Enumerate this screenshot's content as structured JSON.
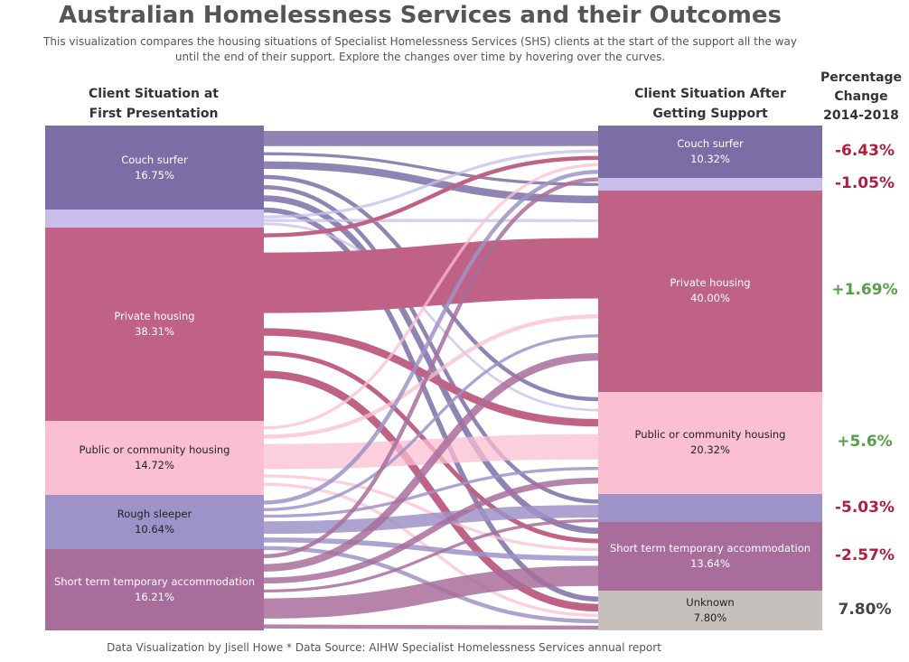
{
  "title": "Australian Homelessness Services and their Outcomes",
  "subtitle": "This visualization compares the housing situations of Specialist Homelessness Services (SHS) clients at the start of the support all the way until the end of their support. Explore the changes over time by hovering over the curves.",
  "left_header": [
    "Client Situation at",
    "First Presentation"
  ],
  "right_header": [
    "Client Situation After",
    "Getting Support"
  ],
  "change_header": [
    "Percentage",
    "Change",
    "2014-2018"
  ],
  "footer": "Data Visualization by Jisell Howe  * Data Source: AIHW Specialist Homelessness Services annual report",
  "colors": {
    "couch": "#7B6EA6",
    "other": "#C7BFEA",
    "private": "#C06285",
    "public": "#FBBFD2",
    "rough": "#9D93C8",
    "short": "#A96D9B",
    "unknown": "#C5C0BC",
    "negative": "#B0203E",
    "positive": "#55A046",
    "neutral": "#444444"
  },
  "chart_data": {
    "type": "sankey",
    "left_nodes": [
      {
        "id": "couch",
        "label": "Couch surfer",
        "value": 16.75,
        "value_label": "16.75%"
      },
      {
        "id": "other",
        "label": "",
        "value": 3.57,
        "value_label": ""
      },
      {
        "id": "private",
        "label": "Private housing",
        "value": 38.31,
        "value_label": "38.31%"
      },
      {
        "id": "public",
        "label": "Public or community housing",
        "value": 14.72,
        "value_label": "14.72%"
      },
      {
        "id": "rough",
        "label": "Rough sleeper",
        "value": 10.64,
        "value_label": "10.64%"
      },
      {
        "id": "short",
        "label": "Short term temporary accommodation",
        "value": 16.21,
        "value_label": "16.21%"
      }
    ],
    "right_nodes": [
      {
        "id": "couch",
        "label": "Couch surfer",
        "value": 10.32,
        "value_label": "10.32%"
      },
      {
        "id": "other",
        "label": "",
        "value": 2.52,
        "value_label": ""
      },
      {
        "id": "private",
        "label": "Private housing",
        "value": 40.0,
        "value_label": "40.00%"
      },
      {
        "id": "public",
        "label": "Public or community housing",
        "value": 20.32,
        "value_label": "20.32%"
      },
      {
        "id": "rough",
        "label": "",
        "value": 5.61,
        "value_label": ""
      },
      {
        "id": "short",
        "label": "Short term temporary accommodation",
        "value": 13.64,
        "value_label": "13.64%"
      },
      {
        "id": "unknown",
        "label": "Unknown",
        "value": 7.8,
        "value_label": "7.80%"
      }
    ],
    "percentage_change": [
      {
        "node": "couch",
        "label": "-6.43%",
        "sign": "negative"
      },
      {
        "node": "other",
        "label": "-1.05%",
        "sign": "negative"
      },
      {
        "node": "private",
        "label": "+1.69%",
        "sign": "positive"
      },
      {
        "node": "public",
        "label": "+5.6%",
        "sign": "positive"
      },
      {
        "node": "rough",
        "label": "-5.03%",
        "sign": "negative"
      },
      {
        "node": "short",
        "label": "-2.57%",
        "sign": "negative"
      },
      {
        "node": "unknown",
        "label": "7.80%",
        "sign": "neutral"
      }
    ],
    "flows": [
      {
        "from": "couch",
        "to": "couch",
        "width": 3.0
      },
      {
        "from": "couch",
        "to": "other",
        "width": 0.6
      },
      {
        "from": "couch",
        "to": "private",
        "width": 1.5
      },
      {
        "from": "couch",
        "to": "public",
        "width": 0.8
      },
      {
        "from": "couch",
        "to": "rough",
        "width": 0.8
      },
      {
        "from": "couch",
        "to": "short",
        "width": 1.2
      },
      {
        "from": "couch",
        "to": "unknown",
        "width": 1.0
      },
      {
        "from": "other",
        "to": "couch",
        "width": 0.6
      },
      {
        "from": "other",
        "to": "private",
        "width": 0.6
      },
      {
        "from": "other",
        "to": "public",
        "width": 0.5
      },
      {
        "from": "private",
        "to": "couch",
        "width": 0.8
      },
      {
        "from": "private",
        "to": "private",
        "width": 12.0
      },
      {
        "from": "private",
        "to": "public",
        "width": 1.5
      },
      {
        "from": "private",
        "to": "short",
        "width": 0.9
      },
      {
        "from": "private",
        "to": "unknown",
        "width": 1.5
      },
      {
        "from": "public",
        "to": "couch",
        "width": 0.6
      },
      {
        "from": "public",
        "to": "private",
        "width": 0.8
      },
      {
        "from": "public",
        "to": "public",
        "width": 5.0
      },
      {
        "from": "public",
        "to": "short",
        "width": 0.6
      },
      {
        "from": "public",
        "to": "unknown",
        "width": 0.6
      },
      {
        "from": "rough",
        "to": "couch",
        "width": 0.8
      },
      {
        "from": "rough",
        "to": "private",
        "width": 0.6
      },
      {
        "from": "rough",
        "to": "public",
        "width": 0.6
      },
      {
        "from": "rough",
        "to": "rough",
        "width": 2.5
      },
      {
        "from": "rough",
        "to": "short",
        "width": 1.0
      },
      {
        "from": "rough",
        "to": "unknown",
        "width": 0.8
      },
      {
        "from": "short",
        "to": "couch",
        "width": 0.8
      },
      {
        "from": "short",
        "to": "private",
        "width": 1.5
      },
      {
        "from": "short",
        "to": "public",
        "width": 1.2
      },
      {
        "from": "short",
        "to": "rough",
        "width": 0.6
      },
      {
        "from": "short",
        "to": "short",
        "width": 4.0
      },
      {
        "from": "short",
        "to": "unknown",
        "width": 0.8
      }
    ]
  }
}
